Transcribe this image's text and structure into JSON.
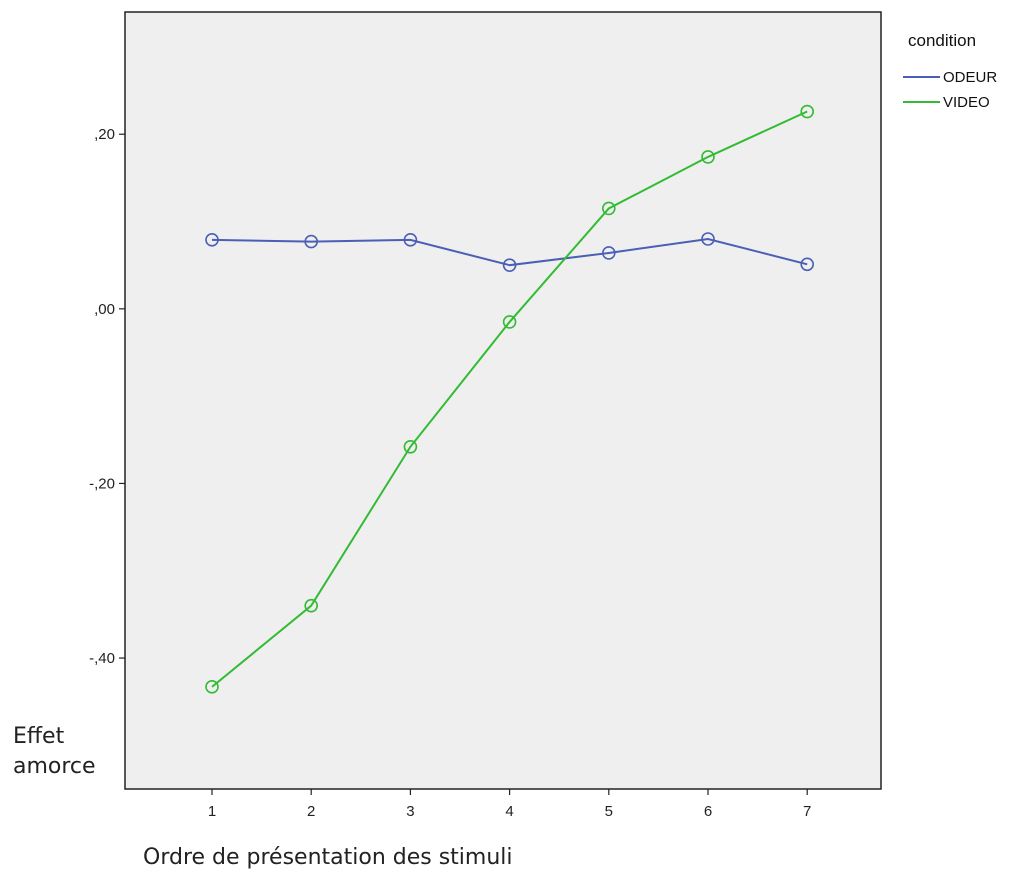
{
  "chart_data": {
    "type": "line",
    "x": [
      1,
      2,
      3,
      4,
      5,
      6,
      7
    ],
    "tick_labels_x": [
      "1",
      "2",
      "3",
      "4",
      "5",
      "6",
      "7"
    ],
    "ylim": [
      -0.55,
      0.34
    ],
    "yticks": [
      0.2,
      0.0,
      -0.2,
      -0.4
    ],
    "tick_labels_y": [
      ",20",
      ",00",
      "-,20",
      "-,40"
    ],
    "xlabel": "Ordre de présentation des stimuli",
    "ylabel_lines": [
      "Effet",
      "amorce"
    ],
    "legend_title": "condition",
    "legend_position": "top-right, outside plot",
    "grid": false,
    "background": "#efefef",
    "series": [
      {
        "name": "ODEUR",
        "color": "#4a5fb5",
        "values": [
          0.079,
          0.077,
          0.079,
          0.05,
          0.064,
          0.08,
          0.051
        ]
      },
      {
        "name": "VIDEO",
        "color": "#33bb33",
        "values": [
          -0.433,
          -0.34,
          -0.158,
          -0.015,
          0.115,
          0.174,
          0.226
        ]
      }
    ]
  }
}
